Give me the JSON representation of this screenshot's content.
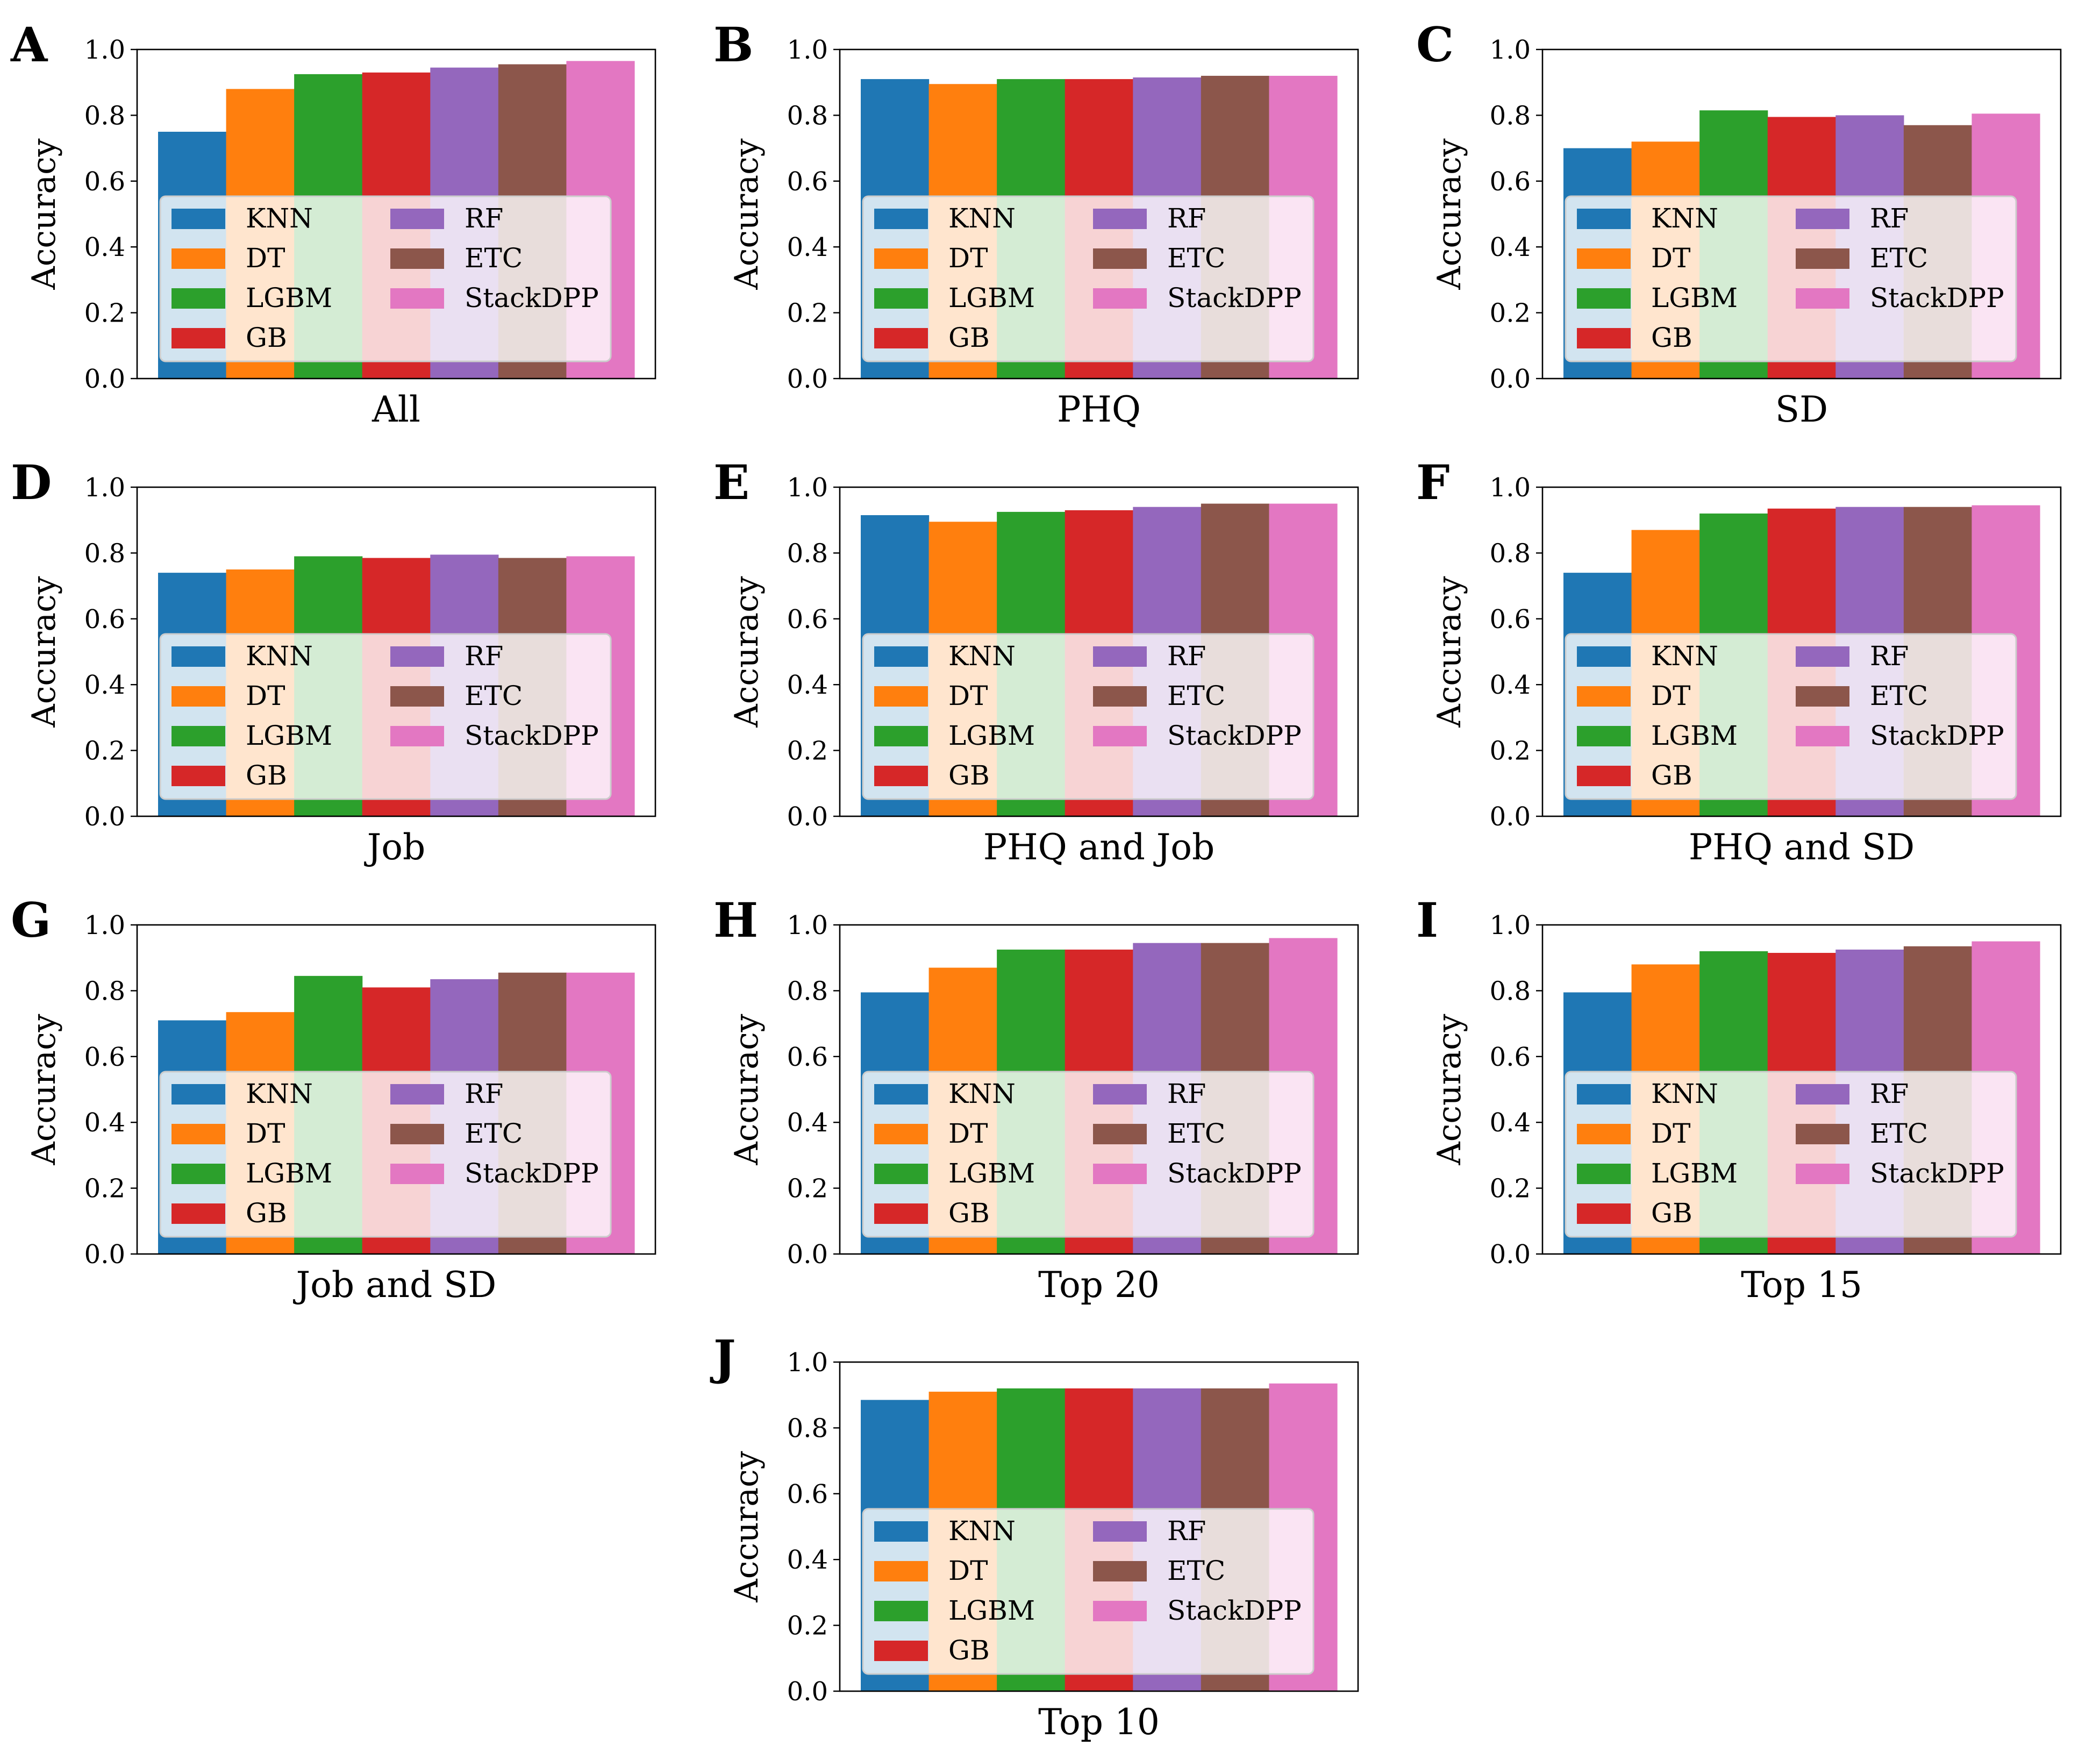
{
  "figure": {
    "models": [
      "KNN",
      "DT",
      "LGBM",
      "GB",
      "RF",
      "ETC",
      "StackDPP"
    ],
    "colors": [
      "#1f77b4",
      "#ff7f0e",
      "#2ca02c",
      "#d62728",
      "#9467bd",
      "#8c564b",
      "#e377c2"
    ],
    "ylabel": "Accuracy",
    "yticks": [
      "0.0",
      "0.2",
      "0.4",
      "0.6",
      "0.8",
      "1.0"
    ],
    "legend_location": "lower center, two columns"
  },
  "chart_data": [
    {
      "type": "bar",
      "panel": "A",
      "title": "",
      "xlabel": "All",
      "ylabel": "Accuracy",
      "ylim": [
        0,
        1
      ],
      "categories": [
        "KNN",
        "DT",
        "LGBM",
        "GB",
        "RF",
        "ETC",
        "StackDPP"
      ],
      "values": [
        0.75,
        0.88,
        0.925,
        0.93,
        0.945,
        0.955,
        0.965
      ]
    },
    {
      "type": "bar",
      "panel": "B",
      "title": "",
      "xlabel": "PHQ",
      "ylabel": "Accuracy",
      "ylim": [
        0,
        1
      ],
      "categories": [
        "KNN",
        "DT",
        "LGBM",
        "GB",
        "RF",
        "ETC",
        "StackDPP"
      ],
      "values": [
        0.91,
        0.895,
        0.91,
        0.91,
        0.915,
        0.92,
        0.92
      ]
    },
    {
      "type": "bar",
      "panel": "C",
      "title": "",
      "xlabel": "SD",
      "ylabel": "Accuracy",
      "ylim": [
        0,
        1
      ],
      "categories": [
        "KNN",
        "DT",
        "LGBM",
        "GB",
        "RF",
        "ETC",
        "StackDPP"
      ],
      "values": [
        0.7,
        0.72,
        0.815,
        0.795,
        0.8,
        0.77,
        0.805
      ]
    },
    {
      "type": "bar",
      "panel": "D",
      "title": "",
      "xlabel": "Job",
      "ylabel": "Accuracy",
      "ylim": [
        0,
        1
      ],
      "categories": [
        "KNN",
        "DT",
        "LGBM",
        "GB",
        "RF",
        "ETC",
        "StackDPP"
      ],
      "values": [
        0.74,
        0.75,
        0.79,
        0.785,
        0.795,
        0.785,
        0.79
      ]
    },
    {
      "type": "bar",
      "panel": "E",
      "title": "",
      "xlabel": "PHQ and Job",
      "ylabel": "Accuracy",
      "ylim": [
        0,
        1
      ],
      "categories": [
        "KNN",
        "DT",
        "LGBM",
        "GB",
        "RF",
        "ETC",
        "StackDPP"
      ],
      "values": [
        0.915,
        0.895,
        0.925,
        0.93,
        0.94,
        0.95,
        0.95
      ]
    },
    {
      "type": "bar",
      "panel": "F",
      "title": "",
      "xlabel": "PHQ and SD",
      "ylabel": "Accuracy",
      "ylim": [
        0,
        1
      ],
      "categories": [
        "KNN",
        "DT",
        "LGBM",
        "GB",
        "RF",
        "ETC",
        "StackDPP"
      ],
      "values": [
        0.74,
        0.87,
        0.92,
        0.935,
        0.94,
        0.94,
        0.945
      ]
    },
    {
      "type": "bar",
      "panel": "G",
      "title": "",
      "xlabel": "Job and SD",
      "ylabel": "Accuracy",
      "ylim": [
        0,
        1
      ],
      "categories": [
        "KNN",
        "DT",
        "LGBM",
        "GB",
        "RF",
        "ETC",
        "StackDPP"
      ],
      "values": [
        0.71,
        0.735,
        0.845,
        0.81,
        0.835,
        0.855,
        0.855
      ]
    },
    {
      "type": "bar",
      "panel": "H",
      "title": "",
      "xlabel": "Top 20",
      "ylabel": "Accuracy",
      "ylim": [
        0,
        1
      ],
      "categories": [
        "KNN",
        "DT",
        "LGBM",
        "GB",
        "RF",
        "ETC",
        "StackDPP"
      ],
      "values": [
        0.795,
        0.87,
        0.925,
        0.925,
        0.945,
        0.945,
        0.96
      ]
    },
    {
      "type": "bar",
      "panel": "I",
      "title": "",
      "xlabel": "Top 15",
      "ylabel": "Accuracy",
      "ylim": [
        0,
        1
      ],
      "categories": [
        "KNN",
        "DT",
        "LGBM",
        "GB",
        "RF",
        "ETC",
        "StackDPP"
      ],
      "values": [
        0.795,
        0.88,
        0.92,
        0.915,
        0.925,
        0.935,
        0.95
      ]
    },
    {
      "type": "bar",
      "panel": "J",
      "title": "",
      "xlabel": "Top 10",
      "ylabel": "Accuracy",
      "ylim": [
        0,
        1
      ],
      "categories": [
        "KNN",
        "DT",
        "LGBM",
        "GB",
        "RF",
        "ETC",
        "StackDPP"
      ],
      "values": [
        0.885,
        0.91,
        0.92,
        0.92,
        0.92,
        0.92,
        0.935
      ]
    }
  ]
}
